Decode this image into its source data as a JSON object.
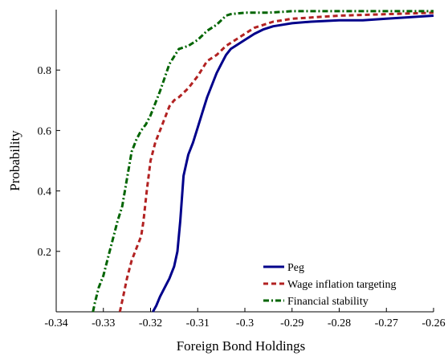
{
  "chart_data": {
    "type": "line",
    "title": "",
    "xlabel": "Foreign Bond Holdings",
    "ylabel": "Probability",
    "xlim": [
      -0.34,
      -0.26
    ],
    "ylim": [
      0,
      1
    ],
    "grid": false,
    "legend_position": "bottom-right",
    "x_ticks": [
      "-0.34",
      "-0.33",
      "-0.32",
      "-0.31",
      "-0.3",
      "-0.29",
      "-0.28",
      "-0.27",
      "-0.26"
    ],
    "y_ticks": [
      "0.2",
      "0.4",
      "0.6",
      "0.8"
    ],
    "series": [
      {
        "name": "Peg",
        "color": "#00008b",
        "style": "solid",
        "x": [
          -0.3195,
          -0.3188,
          -0.318,
          -0.317,
          -0.316,
          -0.315,
          -0.3143,
          -0.3137,
          -0.313,
          -0.312,
          -0.311,
          -0.31,
          -0.309,
          -0.308,
          -0.307,
          -0.306,
          -0.305,
          -0.304,
          -0.303,
          -0.302,
          -0.3,
          -0.298,
          -0.296,
          -0.294,
          -0.292,
          -0.29,
          -0.286,
          -0.28,
          -0.275,
          -0.27,
          -0.265,
          -0.26
        ],
        "y": [
          0.0,
          0.02,
          0.05,
          0.08,
          0.11,
          0.15,
          0.2,
          0.3,
          0.45,
          0.52,
          0.56,
          0.61,
          0.66,
          0.71,
          0.75,
          0.79,
          0.82,
          0.85,
          0.87,
          0.88,
          0.9,
          0.92,
          0.935,
          0.945,
          0.95,
          0.955,
          0.96,
          0.965,
          0.965,
          0.97,
          0.975,
          0.98
        ]
      },
      {
        "name": "Wage inflation targeting",
        "color": "#b22222",
        "style": "dashed",
        "x": [
          -0.3265,
          -0.3258,
          -0.325,
          -0.324,
          -0.323,
          -0.322,
          -0.3215,
          -0.3208,
          -0.32,
          -0.319,
          -0.318,
          -0.317,
          -0.316,
          -0.315,
          -0.314,
          -0.312,
          -0.31,
          -0.308,
          -0.306,
          -0.304,
          -0.302,
          -0.3,
          -0.298,
          -0.296,
          -0.294,
          -0.29,
          -0.285,
          -0.28,
          -0.27,
          -0.26
        ],
        "y": [
          0.0,
          0.05,
          0.11,
          0.17,
          0.21,
          0.25,
          0.3,
          0.4,
          0.5,
          0.56,
          0.6,
          0.64,
          0.68,
          0.7,
          0.71,
          0.74,
          0.78,
          0.83,
          0.85,
          0.88,
          0.9,
          0.92,
          0.94,
          0.95,
          0.96,
          0.97,
          0.975,
          0.98,
          0.985,
          0.99
        ]
      },
      {
        "name": "Financial stability",
        "color": "#006400",
        "style": "dashdot",
        "x": [
          -0.3322,
          -0.3318,
          -0.331,
          -0.33,
          -0.329,
          -0.328,
          -0.327,
          -0.326,
          -0.325,
          -0.324,
          -0.323,
          -0.322,
          -0.321,
          -0.32,
          -0.318,
          -0.316,
          -0.314,
          -0.312,
          -0.31,
          -0.308,
          -0.306,
          -0.304,
          -0.303,
          -0.3,
          -0.295,
          -0.29,
          -0.28,
          -0.27,
          -0.26
        ],
        "y": [
          0.0,
          0.03,
          0.08,
          0.12,
          0.18,
          0.24,
          0.3,
          0.35,
          0.44,
          0.53,
          0.57,
          0.6,
          0.62,
          0.65,
          0.73,
          0.82,
          0.87,
          0.88,
          0.9,
          0.93,
          0.95,
          0.98,
          0.985,
          0.99,
          0.99,
          0.995,
          0.995,
          0.995,
          0.995
        ]
      }
    ]
  }
}
